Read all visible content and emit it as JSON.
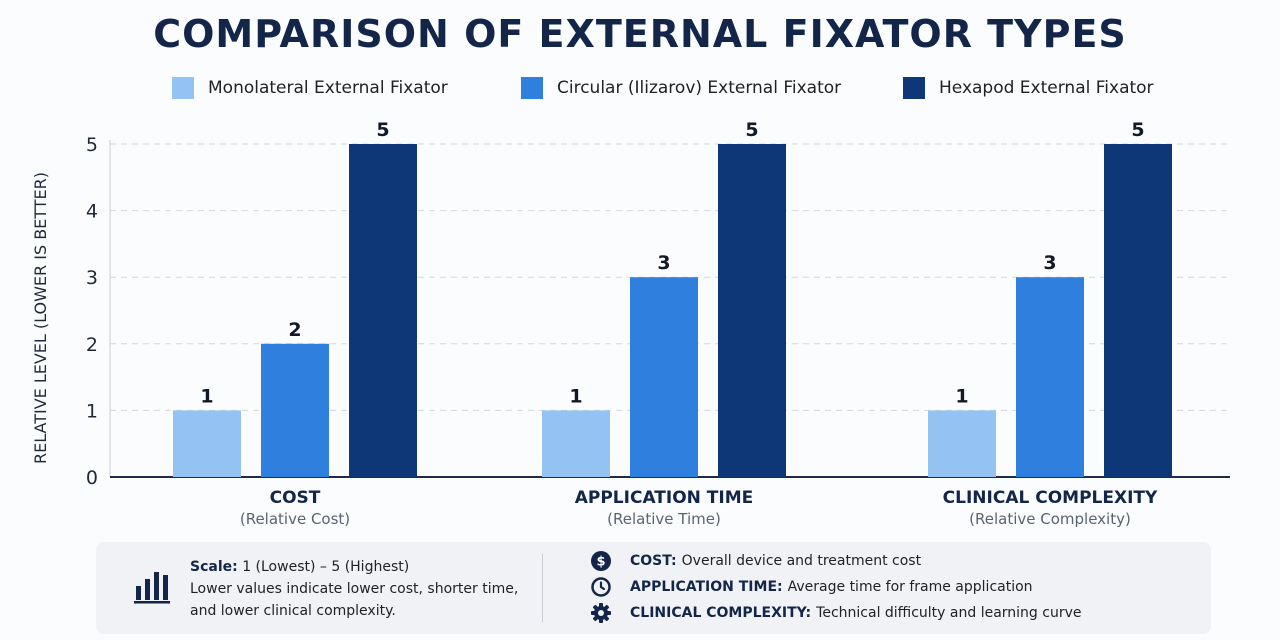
{
  "title": "COMPARISON OF EXTERNAL FIXATOR TYPES",
  "colors": {
    "monolateral": "#94c2f2",
    "circular": "#2f80de",
    "hexapod": "#0d3776",
    "dark_text": "#14254a"
  },
  "chart_data": {
    "type": "bar",
    "categories": [
      "COST",
      "APPLICATION TIME",
      "CLINICAL COMPLEXITY"
    ],
    "category_sublabels": [
      "(Relative Cost)",
      "(Relative Time)",
      "(Relative Complexity)"
    ],
    "series": [
      {
        "name": "Monolateral External Fixator",
        "values": [
          1,
          1,
          1
        ]
      },
      {
        "name": "Circular (Ilizarov) External Fixator",
        "values": [
          2,
          3,
          3
        ]
      },
      {
        "name": "Hexapod External Fixator",
        "values": [
          5,
          5,
          5
        ]
      }
    ],
    "ylabel": "RELATIVE LEVEL (LOWER IS BETTER)",
    "ylim": [
      0,
      5
    ],
    "yticks": [
      "0",
      "1",
      "2",
      "3",
      "4",
      "5"
    ],
    "grid": true,
    "legend": "top"
  },
  "footer": {
    "scale_icon": "bar-chart-icon",
    "scale_label": "Scale:",
    "scale_value": "1 (Lowest) – 5 (Highest)",
    "scale_note_1": "Lower values indicate lower cost, shorter time,",
    "scale_note_2": "and lower clinical complexity.",
    "definitions": [
      {
        "icon": "dollar-icon",
        "term": "COST:",
        "text": "Overall device and treatment cost"
      },
      {
        "icon": "clock-icon",
        "term": "APPLICATION TIME:",
        "text": "Average time for frame application"
      },
      {
        "icon": "gear-icon",
        "term": "CLINICAL COMPLEXITY:",
        "text": "Technical difficulty and learning curve"
      }
    ]
  }
}
